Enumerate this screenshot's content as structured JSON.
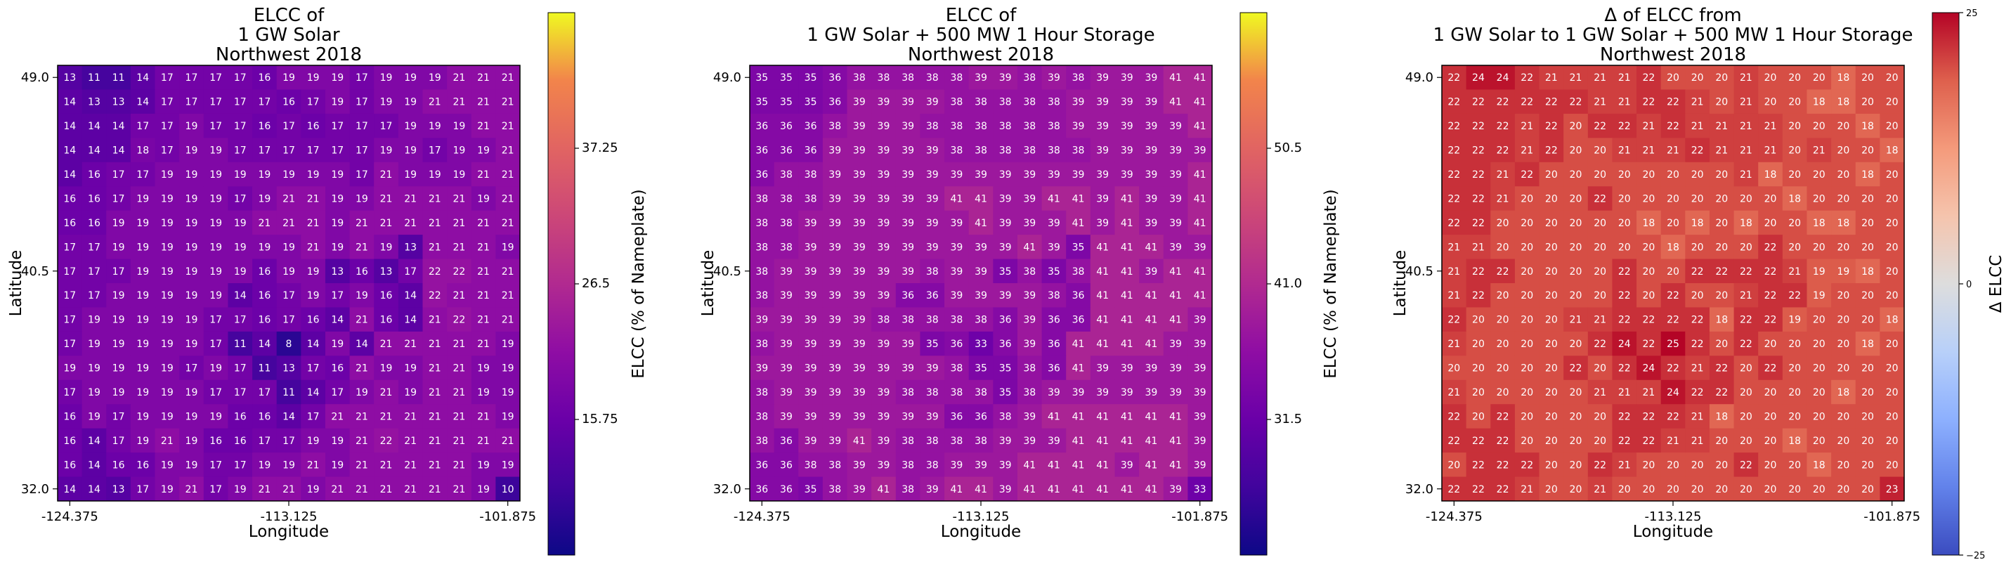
{
  "chart_data": [
    {
      "type": "heatmap",
      "title": [
        "ELCC of",
        "1 GW Solar",
        "Northwest 2018"
      ],
      "xlabel": "Longitude",
      "ylabel": "Latitude",
      "x_ticks": [
        "-124.375",
        "-113.125",
        "-101.875"
      ],
      "y_ticks": [
        "49.0",
        "40.5",
        "32.0"
      ],
      "colorbar": {
        "label": "ELCC (% of Nameplate)",
        "ticks": [
          "37.25",
          "26.5",
          "15.75"
        ],
        "range": [
          5,
          48
        ],
        "colormap": "plasma"
      },
      "values": [
        [
          13,
          11,
          11,
          14,
          17,
          17,
          17,
          17,
          16,
          19,
          19,
          19,
          17,
          19,
          19,
          19,
          21,
          21,
          21
        ],
        [
          14,
          13,
          13,
          14,
          17,
          17,
          17,
          17,
          17,
          16,
          17,
          19,
          17,
          19,
          19,
          21,
          21,
          21,
          21
        ],
        [
          14,
          14,
          14,
          17,
          17,
          19,
          17,
          17,
          16,
          17,
          16,
          17,
          17,
          17,
          19,
          19,
          19,
          21,
          21
        ],
        [
          14,
          14,
          14,
          18,
          17,
          19,
          19,
          17,
          17,
          17,
          17,
          17,
          17,
          19,
          19,
          17,
          19,
          19,
          21
        ],
        [
          14,
          16,
          17,
          17,
          19,
          19,
          19,
          19,
          19,
          19,
          19,
          19,
          17,
          21,
          19,
          19,
          19,
          21,
          21
        ],
        [
          16,
          16,
          17,
          19,
          19,
          19,
          19,
          17,
          19,
          21,
          21,
          19,
          19,
          21,
          21,
          21,
          21,
          19,
          21
        ],
        [
          16,
          16,
          19,
          19,
          19,
          19,
          19,
          19,
          21,
          21,
          21,
          19,
          21,
          21,
          21,
          21,
          21,
          21,
          21
        ],
        [
          17,
          17,
          19,
          19,
          19,
          19,
          19,
          19,
          19,
          19,
          21,
          19,
          21,
          19,
          13,
          21,
          21,
          21,
          19
        ],
        [
          17,
          17,
          17,
          19,
          19,
          19,
          19,
          19,
          16,
          19,
          19,
          13,
          16,
          13,
          17,
          22,
          22,
          21,
          21
        ],
        [
          17,
          17,
          19,
          19,
          19,
          19,
          19,
          14,
          16,
          17,
          19,
          17,
          19,
          16,
          14,
          22,
          21,
          21,
          21
        ],
        [
          17,
          19,
          19,
          19,
          19,
          19,
          17,
          17,
          16,
          17,
          16,
          14,
          21,
          16,
          14,
          21,
          22,
          21,
          21
        ],
        [
          17,
          19,
          19,
          19,
          19,
          19,
          17,
          11,
          14,
          8,
          14,
          19,
          14,
          21,
          21,
          21,
          21,
          21,
          19
        ],
        [
          19,
          19,
          19,
          19,
          19,
          17,
          19,
          17,
          11,
          13,
          17,
          16,
          21,
          19,
          19,
          21,
          21,
          19,
          19
        ],
        [
          17,
          19,
          19,
          19,
          19,
          19,
          17,
          17,
          17,
          11,
          14,
          17,
          19,
          21,
          19,
          21,
          21,
          19,
          19
        ],
        [
          16,
          19,
          17,
          19,
          19,
          19,
          19,
          16,
          16,
          14,
          17,
          21,
          21,
          21,
          21,
          21,
          21,
          21,
          19
        ],
        [
          16,
          14,
          17,
          19,
          21,
          19,
          16,
          16,
          17,
          17,
          19,
          19,
          21,
          22,
          21,
          21,
          21,
          21,
          21
        ],
        [
          16,
          14,
          16,
          16,
          19,
          19,
          17,
          17,
          19,
          19,
          21,
          19,
          21,
          21,
          21,
          21,
          21,
          19,
          19
        ],
        [
          14,
          14,
          13,
          17,
          19,
          21,
          17,
          19,
          21,
          21,
          19,
          21,
          21,
          21,
          21,
          21,
          21,
          19,
          10
        ]
      ]
    },
    {
      "type": "heatmap",
      "title": [
        "ELCC of",
        "1 GW Solar + 500 MW 1 Hour Storage",
        "Northwest 2018"
      ],
      "xlabel": "Longitude",
      "ylabel": "Latitude",
      "x_ticks": [
        "-124.375",
        "-113.125",
        "-101.875"
      ],
      "y_ticks": [
        "49.0",
        "40.5",
        "32.0"
      ],
      "colorbar": {
        "label": "ELCC (% of Nameplate)",
        "ticks": [
          "50.5",
          "41.0",
          "31.5"
        ],
        "range": [
          23,
          61
        ],
        "colormap": "plasma"
      },
      "values": [
        [
          35,
          35,
          35,
          36,
          38,
          38,
          38,
          38,
          38,
          39,
          39,
          38,
          39,
          38,
          39,
          39,
          39,
          41,
          41
        ],
        [
          35,
          35,
          35,
          36,
          39,
          39,
          39,
          39,
          38,
          38,
          38,
          38,
          38,
          39,
          39,
          39,
          39,
          41,
          41
        ],
        [
          36,
          36,
          36,
          38,
          39,
          39,
          39,
          38,
          38,
          38,
          38,
          38,
          38,
          39,
          39,
          39,
          39,
          39,
          41
        ],
        [
          36,
          36,
          36,
          39,
          39,
          39,
          39,
          39,
          38,
          38,
          38,
          38,
          38,
          38,
          39,
          39,
          39,
          39,
          39
        ],
        [
          36,
          38,
          38,
          39,
          39,
          39,
          39,
          39,
          39,
          39,
          39,
          39,
          39,
          39,
          39,
          39,
          39,
          39,
          41
        ],
        [
          38,
          38,
          38,
          39,
          39,
          39,
          39,
          39,
          41,
          41,
          39,
          39,
          41,
          41,
          39,
          41,
          39,
          39,
          41
        ],
        [
          38,
          38,
          39,
          39,
          39,
          39,
          39,
          39,
          39,
          41,
          39,
          39,
          39,
          41,
          39,
          41,
          39,
          39,
          41
        ],
        [
          38,
          38,
          39,
          39,
          39,
          39,
          39,
          39,
          39,
          39,
          39,
          41,
          39,
          35,
          41,
          41,
          41,
          39,
          39
        ],
        [
          38,
          39,
          39,
          39,
          39,
          39,
          39,
          38,
          39,
          39,
          35,
          38,
          35,
          38,
          41,
          41,
          39,
          41,
          41
        ],
        [
          38,
          39,
          39,
          39,
          39,
          39,
          36,
          36,
          39,
          39,
          39,
          39,
          38,
          36,
          41,
          41,
          41,
          41,
          41
        ],
        [
          39,
          39,
          39,
          39,
          39,
          38,
          38,
          38,
          38,
          38,
          36,
          39,
          36,
          36,
          41,
          41,
          41,
          41,
          39
        ],
        [
          38,
          39,
          39,
          39,
          39,
          39,
          39,
          35,
          36,
          33,
          36,
          39,
          36,
          41,
          41,
          41,
          41,
          39,
          39
        ],
        [
          39,
          39,
          39,
          39,
          39,
          39,
          39,
          39,
          38,
          35,
          35,
          38,
          36,
          41,
          39,
          39,
          39,
          39,
          39
        ],
        [
          38,
          39,
          39,
          39,
          39,
          39,
          38,
          38,
          38,
          38,
          35,
          38,
          39,
          39,
          39,
          39,
          39,
          39,
          39
        ],
        [
          38,
          39,
          39,
          39,
          39,
          39,
          39,
          39,
          36,
          36,
          38,
          39,
          41,
          41,
          41,
          41,
          41,
          41,
          39
        ],
        [
          38,
          36,
          39,
          39,
          41,
          39,
          38,
          38,
          38,
          38,
          39,
          39,
          39,
          41,
          41,
          41,
          41,
          41,
          39
        ],
        [
          36,
          36,
          38,
          38,
          39,
          39,
          38,
          38,
          39,
          39,
          39,
          41,
          41,
          41,
          41,
          39,
          41,
          41,
          39
        ],
        [
          36,
          36,
          35,
          38,
          39,
          41,
          38,
          39,
          41,
          41,
          39,
          41,
          41,
          41,
          41,
          41,
          41,
          39,
          33
        ]
      ]
    },
    {
      "type": "heatmap",
      "title": [
        "Δ of ELCC from",
        "1 GW Solar to 1 GW Solar + 500 MW 1 Hour Storage",
        "Northwest 2018"
      ],
      "xlabel": "Longitude",
      "ylabel": "Latitude",
      "x_ticks": [
        "-124.375",
        "-113.125",
        "-101.875"
      ],
      "y_ticks": [
        "49.0",
        "40.5",
        "32.0"
      ],
      "colorbar": {
        "label": "Δ ELCC",
        "ticks": [
          "25",
          "0",
          "−25"
        ],
        "range": [
          -25,
          25
        ],
        "colormap": "coolwarm"
      },
      "values": [
        [
          22,
          24,
          24,
          22,
          21,
          21,
          21,
          21,
          22,
          20,
          20,
          20,
          21,
          20,
          20,
          20,
          18,
          20,
          20
        ],
        [
          22,
          22,
          22,
          22,
          22,
          22,
          21,
          21,
          22,
          22,
          21,
          20,
          21,
          20,
          20,
          18,
          18,
          20,
          20
        ],
        [
          22,
          22,
          22,
          21,
          22,
          20,
          22,
          22,
          21,
          22,
          21,
          21,
          21,
          21,
          20,
          20,
          20,
          18,
          20
        ],
        [
          22,
          22,
          22,
          21,
          22,
          20,
          20,
          21,
          21,
          21,
          22,
          21,
          21,
          21,
          20,
          21,
          20,
          20,
          18
        ],
        [
          22,
          22,
          21,
          22,
          20,
          20,
          20,
          20,
          20,
          20,
          20,
          20,
          21,
          18,
          20,
          20,
          20,
          18,
          20
        ],
        [
          22,
          22,
          21,
          20,
          20,
          20,
          22,
          20,
          20,
          20,
          20,
          20,
          20,
          20,
          18,
          20,
          20,
          20,
          20
        ],
        [
          22,
          22,
          20,
          20,
          20,
          20,
          20,
          20,
          18,
          20,
          18,
          20,
          18,
          20,
          20,
          18,
          18,
          20,
          20
        ],
        [
          21,
          21,
          20,
          20,
          20,
          20,
          20,
          20,
          20,
          18,
          20,
          20,
          20,
          22,
          20,
          20,
          20,
          20,
          20
        ],
        [
          21,
          22,
          22,
          20,
          20,
          20,
          20,
          22,
          20,
          20,
          22,
          22,
          22,
          22,
          21,
          19,
          19,
          18,
          20
        ],
        [
          21,
          22,
          20,
          20,
          20,
          20,
          20,
          22,
          20,
          22,
          20,
          20,
          21,
          22,
          22,
          19,
          20,
          20,
          20
        ],
        [
          22,
          20,
          20,
          20,
          20,
          21,
          21,
          22,
          22,
          22,
          22,
          18,
          22,
          22,
          19,
          20,
          20,
          20,
          18
        ],
        [
          21,
          20,
          20,
          20,
          20,
          20,
          22,
          24,
          22,
          25,
          22,
          20,
          22,
          20,
          20,
          20,
          20,
          18,
          20
        ],
        [
          20,
          20,
          20,
          20,
          20,
          22,
          20,
          22,
          24,
          22,
          21,
          22,
          20,
          22,
          20,
          20,
          20,
          20,
          20
        ],
        [
          21,
          20,
          20,
          20,
          20,
          20,
          21,
          21,
          21,
          24,
          22,
          22,
          20,
          20,
          20,
          20,
          18,
          20,
          20
        ],
        [
          22,
          20,
          22,
          20,
          20,
          20,
          20,
          22,
          22,
          22,
          21,
          18,
          20,
          20,
          20,
          20,
          20,
          20,
          20
        ],
        [
          22,
          22,
          22,
          20,
          20,
          20,
          20,
          22,
          22,
          21,
          21,
          20,
          20,
          20,
          18,
          20,
          20,
          20,
          20
        ],
        [
          20,
          22,
          22,
          22,
          20,
          20,
          22,
          21,
          20,
          20,
          20,
          20,
          22,
          20,
          20,
          18,
          20,
          20,
          20
        ],
        [
          22,
          22,
          22,
          21,
          20,
          20,
          21,
          20,
          20,
          20,
          20,
          20,
          20,
          20,
          20,
          20,
          20,
          20,
          23
        ]
      ]
    }
  ]
}
